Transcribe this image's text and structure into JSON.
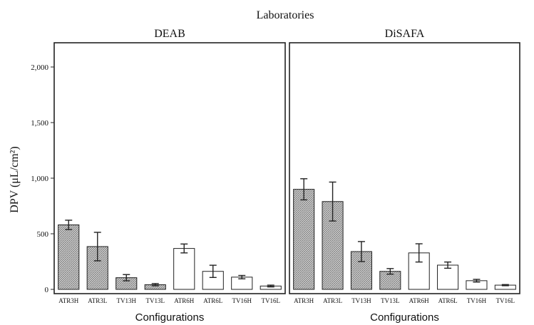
{
  "chart_data": {
    "type": "bar",
    "title": "Laboratories",
    "ylabel": "DPV (μL/cm²)",
    "xlabel": "Configurations",
    "ylim": [
      0,
      2200
    ],
    "yticks": [
      0,
      500,
      1000,
      1500,
      2000
    ],
    "ytick_labels": [
      "0",
      "500",
      "1,000",
      "1,500",
      "2,000"
    ],
    "categories": [
      "ATR3H",
      "ATR3L",
      "TV13H",
      "TV13L",
      "ATR6H",
      "ATR6L",
      "TV16H",
      "TV16L"
    ],
    "hatched_categories": [
      "ATR3H",
      "ATR3L",
      "TV13H",
      "TV13L"
    ],
    "colors": {
      "hatched_fill": "#cfcfcf",
      "open_fill": "#ffffff",
      "stroke": "#222222"
    },
    "panels": [
      {
        "name": "DEAB",
        "values": [
          580,
          385,
          105,
          42,
          368,
          162,
          110,
          30
        ],
        "errors": [
          42,
          128,
          28,
          10,
          40,
          55,
          15,
          8
        ]
      },
      {
        "name": "DiSAFA",
        "values": [
          900,
          790,
          340,
          162,
          328,
          218,
          78,
          38
        ],
        "errors": [
          95,
          175,
          90,
          25,
          82,
          28,
          12,
          5
        ]
      }
    ]
  }
}
